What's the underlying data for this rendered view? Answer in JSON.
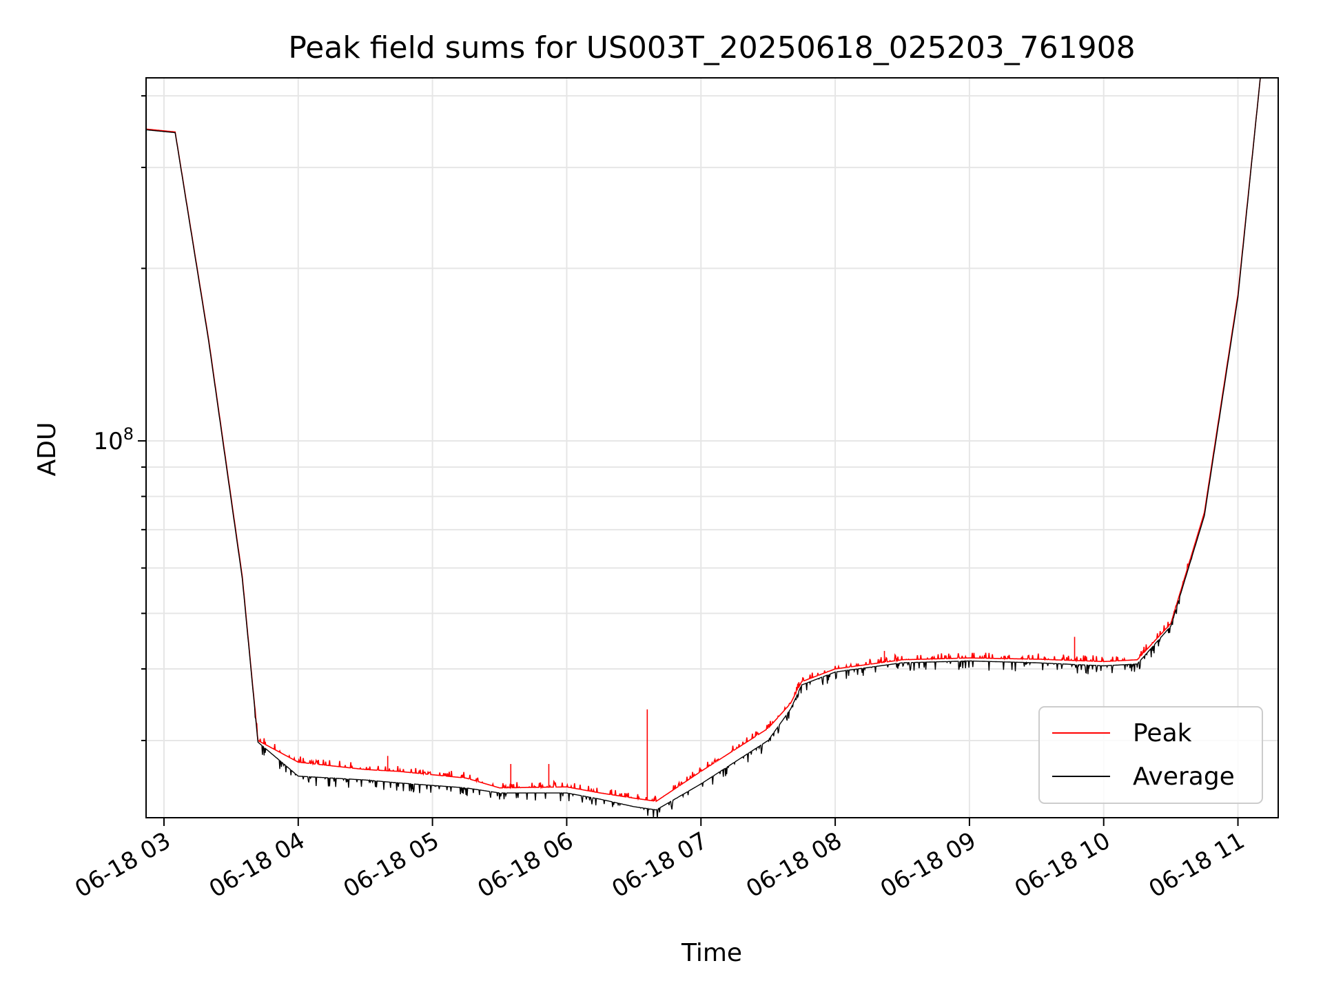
{
  "chart_data": {
    "type": "line",
    "title": "Peak field sums for US003T_20250618_025203_761908",
    "xlabel": "Time",
    "ylabel": "ADU",
    "x_scale": "time",
    "y_scale": "log",
    "x_range": [
      "2025-06-18 02:52",
      "2025-06-18 11:18"
    ],
    "ylim": [
      22000000,
      430000000
    ],
    "x_ticks": [
      "06-18 03",
      "06-18 04",
      "06-18 05",
      "06-18 06",
      "06-18 07",
      "06-18 08",
      "06-18 09",
      "06-18 10",
      "06-18 11"
    ],
    "y_ticks": [
      {
        "value": 100000000,
        "base": "10",
        "exp": "8"
      }
    ],
    "grid": true,
    "legend_position": "lower right",
    "series": [
      {
        "name": "Peak",
        "color": "#ff0000",
        "points": [
          [
            "2025-06-18 02:52",
            350000000
          ],
          [
            "2025-06-18 03:05",
            346000000
          ],
          [
            "2025-06-18 03:20",
            150000000
          ],
          [
            "2025-06-18 03:35",
            58000000
          ],
          [
            "2025-06-18 03:42",
            30000000
          ],
          [
            "2025-06-18 04:00",
            27500000
          ],
          [
            "2025-06-18 04:30",
            26700000
          ],
          [
            "2025-06-18 04:45",
            26500000
          ],
          [
            "2025-06-18 05:15",
            25800000
          ],
          [
            "2025-06-18 05:30",
            24800000
          ],
          [
            "2025-06-18 06:00",
            24900000
          ],
          [
            "2025-06-18 06:15",
            24300000
          ],
          [
            "2025-06-18 06:30",
            23800000
          ],
          [
            "2025-06-18 06:40",
            23500000
          ],
          [
            "2025-06-18 07:00",
            26500000
          ],
          [
            "2025-06-18 07:30",
            31500000
          ],
          [
            "2025-06-18 07:40",
            34800000
          ],
          [
            "2025-06-18 07:45",
            38000000
          ],
          [
            "2025-06-18 08:00",
            40000000
          ],
          [
            "2025-06-18 08:30",
            41500000
          ],
          [
            "2025-06-18 09:00",
            41800000
          ],
          [
            "2025-06-18 09:30",
            41600000
          ],
          [
            "2025-06-18 10:00",
            41200000
          ],
          [
            "2025-06-18 10:15",
            41500000
          ],
          [
            "2025-06-18 10:30",
            48000000
          ],
          [
            "2025-06-18 10:45",
            75000000
          ],
          [
            "2025-06-18 11:00",
            180000000
          ],
          [
            "2025-06-18 11:10",
            430000000
          ]
        ],
        "spikes": [
          [
            "2025-06-18 03:45",
            29500000
          ],
          [
            "2025-06-18 04:40",
            28200000
          ],
          [
            "2025-06-18 05:35",
            27300000
          ],
          [
            "2025-06-18 05:52",
            27300000
          ],
          [
            "2025-06-18 06:36",
            34000000
          ],
          [
            "2025-06-18 08:22",
            43000000
          ],
          [
            "2025-06-18 09:47",
            45500000
          ]
        ]
      },
      {
        "name": "Average",
        "color": "#000000",
        "points": [
          [
            "2025-06-18 02:52",
            349000000
          ],
          [
            "2025-06-18 03:05",
            345000000
          ],
          [
            "2025-06-18 03:20",
            149000000
          ],
          [
            "2025-06-18 03:35",
            57500000
          ],
          [
            "2025-06-18 03:42",
            29800000
          ],
          [
            "2025-06-18 04:00",
            26000000
          ],
          [
            "2025-06-18 04:30",
            25600000
          ],
          [
            "2025-06-18 04:45",
            25300000
          ],
          [
            "2025-06-18 05:15",
            24800000
          ],
          [
            "2025-06-18 05:30",
            24300000
          ],
          [
            "2025-06-18 06:00",
            24300000
          ],
          [
            "2025-06-18 06:15",
            23700000
          ],
          [
            "2025-06-18 06:30",
            23000000
          ],
          [
            "2025-06-18 06:40",
            22700000
          ],
          [
            "2025-06-18 07:00",
            25200000
          ],
          [
            "2025-06-18 07:30",
            30000000
          ],
          [
            "2025-06-18 07:40",
            34000000
          ],
          [
            "2025-06-18 07:45",
            37500000
          ],
          [
            "2025-06-18 08:00",
            39500000
          ],
          [
            "2025-06-18 08:30",
            41000000
          ],
          [
            "2025-06-18 09:00",
            41300000
          ],
          [
            "2025-06-18 09:30",
            41000000
          ],
          [
            "2025-06-18 10:00",
            40500000
          ],
          [
            "2025-06-18 10:15",
            40800000
          ],
          [
            "2025-06-18 10:30",
            47500000
          ],
          [
            "2025-06-18 10:45",
            74000000
          ],
          [
            "2025-06-18 11:00",
            178000000
          ],
          [
            "2025-06-18 11:10",
            430000000
          ]
        ]
      }
    ]
  }
}
